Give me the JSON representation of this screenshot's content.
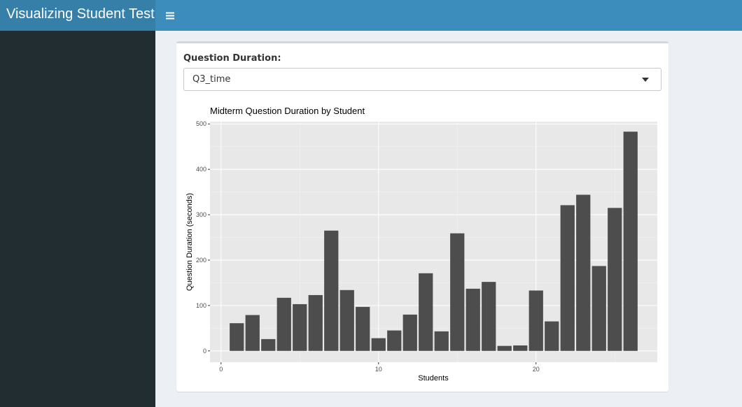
{
  "header": {
    "title": "Visualizing Student Test",
    "toggle_icon": "hamburger-menu-icon"
  },
  "colors": {
    "header_bg": "#3c8dbc",
    "logo_bg": "#367fa9",
    "sidebar_bg": "#222d32",
    "content_bg": "#ecf0f5",
    "bar_fill": "#4d4d4d",
    "panel_bg": "#e8e8e8"
  },
  "controls": {
    "duration_label": "Question Duration:",
    "duration_selected": "Q3_time"
  },
  "chart_data": {
    "type": "bar",
    "title": "Midterm Question Duration by Student",
    "xlabel": "Students",
    "ylabel": "Question Duration (seconds)",
    "xlim": [
      -0.7,
      27.7
    ],
    "ylim": [
      -25,
      505
    ],
    "x_ticks": [
      0,
      10,
      20
    ],
    "y_ticks": [
      0,
      100,
      200,
      300,
      400,
      500
    ],
    "grid": true,
    "x": [
      1,
      2,
      3,
      4,
      5,
      6,
      7,
      8,
      9,
      10,
      11,
      12,
      13,
      14,
      15,
      16,
      17,
      18,
      19,
      20,
      21,
      22,
      23,
      24,
      25,
      26
    ],
    "values": [
      61,
      79,
      26,
      117,
      103,
      123,
      265,
      134,
      97,
      28,
      45,
      80,
      171,
      43,
      259,
      137,
      152,
      11,
      12,
      133,
      65,
      321,
      344,
      187,
      315,
      483
    ]
  }
}
